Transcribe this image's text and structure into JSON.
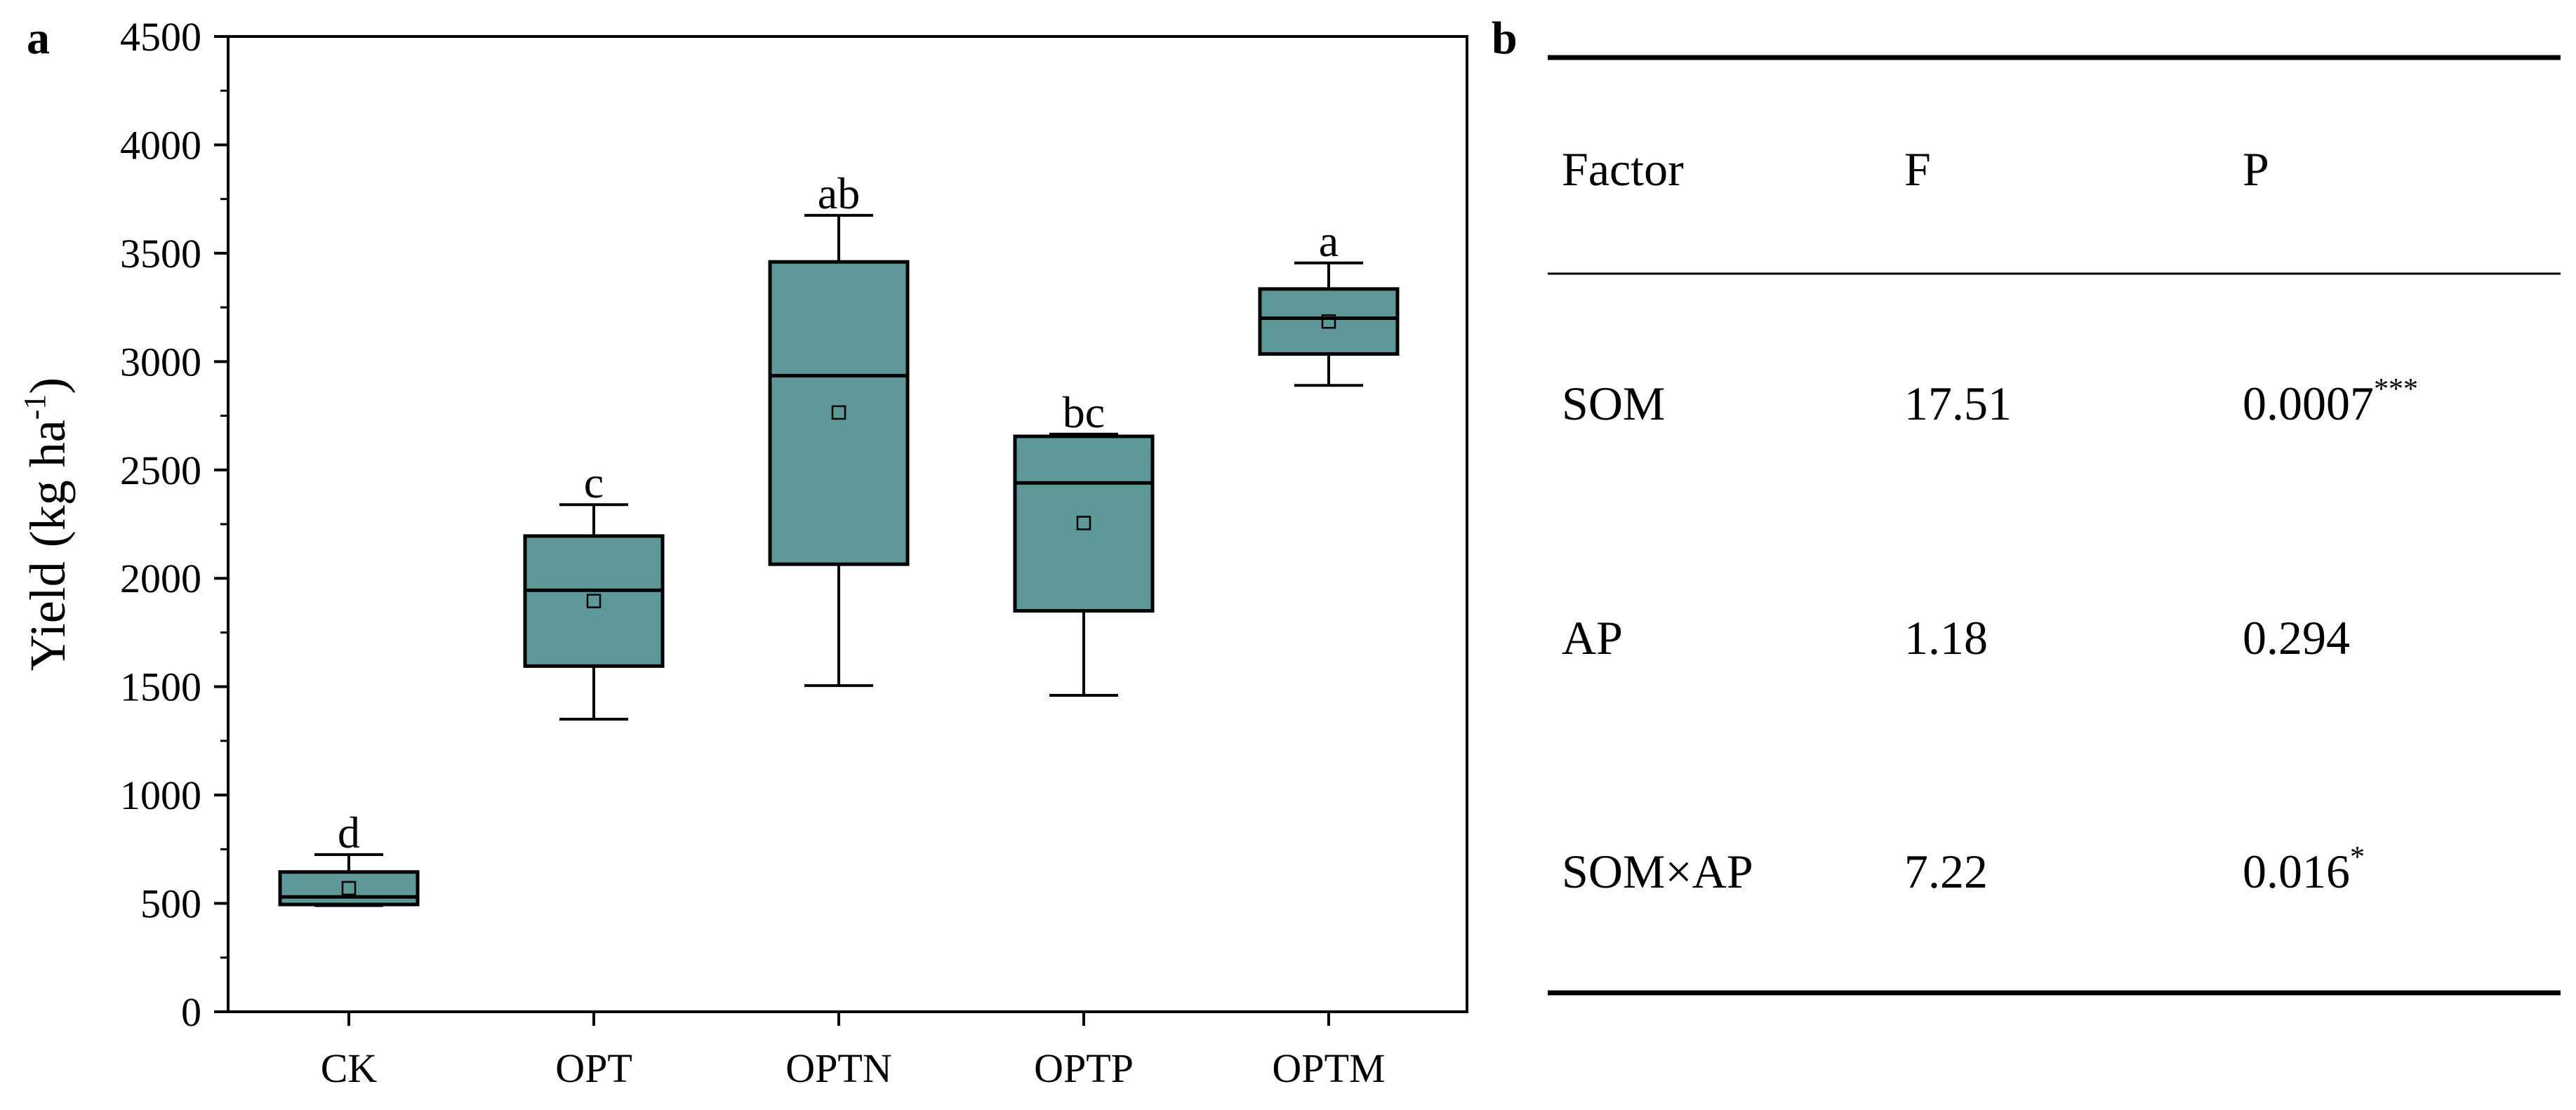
{
  "panel_a_label": "a",
  "panel_b_label": "b",
  "chart_data": {
    "type": "box",
    "ylabel": "Yield",
    "ylabel_unit": "(kg ha",
    "ylabel_unit_sup": "-1",
    "ylabel_unit_close": ")",
    "ylim": [
      0,
      4500
    ],
    "yticks": [
      0,
      500,
      1000,
      1500,
      2000,
      2500,
      3000,
      3500,
      4000,
      4500
    ],
    "categories": [
      "CK",
      "OPT",
      "OPTN",
      "OPTP",
      "OPTM"
    ],
    "box_color": "#5e9898",
    "stats": [
      {
        "category": "CK",
        "min": 490,
        "q1": 495,
        "median": 530,
        "q3": 645,
        "max": 725,
        "mean": 570,
        "letter": "d"
      },
      {
        "category": "OPT",
        "min": 1350,
        "q1": 1595,
        "median": 1945,
        "q3": 2195,
        "max": 2340,
        "mean": 1895,
        "letter": "c"
      },
      {
        "category": "OPTN",
        "min": 1505,
        "q1": 2065,
        "median": 2935,
        "q3": 3460,
        "max": 3675,
        "mean": 2765,
        "letter": "ab"
      },
      {
        "category": "OPTP",
        "min": 1460,
        "q1": 1850,
        "median": 2440,
        "q3": 2655,
        "max": 2665,
        "mean": 2255,
        "letter": "bc"
      },
      {
        "category": "OPTM",
        "min": 2890,
        "q1": 3035,
        "median": 3200,
        "q3": 3335,
        "max": 3455,
        "mean": 3185,
        "letter": "a"
      }
    ]
  },
  "table": {
    "headers": [
      "Factor",
      "F",
      "P"
    ],
    "rows": [
      {
        "factor": "SOM",
        "f": "17.51",
        "p": "0.0007",
        "sig": "***"
      },
      {
        "factor": "AP",
        "f": "1.18",
        "p": "0.294",
        "sig": ""
      },
      {
        "factor": "SOM×AP",
        "f": "7.22",
        "p": "0.016",
        "sig": "*"
      }
    ]
  }
}
